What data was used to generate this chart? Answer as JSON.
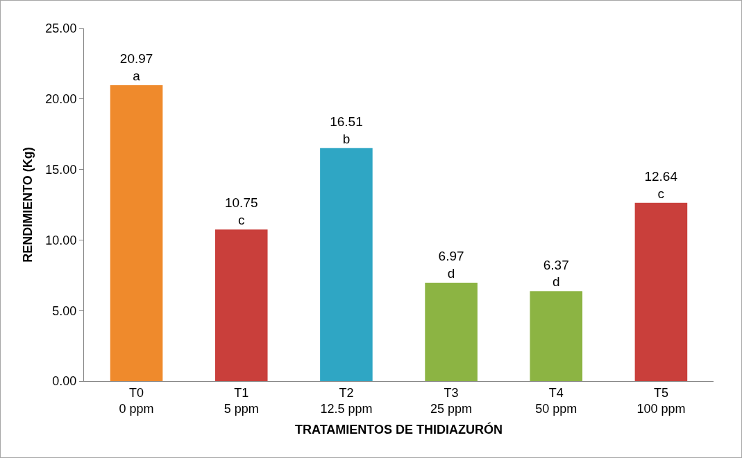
{
  "chart_data": {
    "type": "bar",
    "xlabel": "TRATAMIENTOS DE THIDIAZURÓN",
    "ylabel": "RENDIMIENTO (Kg)",
    "categories": [
      "T0\n0 ppm",
      "T1\n5 ppm",
      "T2\n12.5 ppm",
      "T3\n25 ppm",
      "T4\n50 ppm",
      "T5\n100 ppm"
    ],
    "values": [
      20.97,
      10.75,
      16.51,
      6.97,
      6.37,
      12.64
    ],
    "colors": [
      "#ef8a2c",
      "#c93f3b",
      "#2fa6c4",
      "#8cb443",
      "#8cb443",
      "#c93f3b"
    ],
    "value_labels": [
      "20.97\na",
      "10.75\nc",
      "16.51\nb",
      "6.97\nd",
      "6.37\nd",
      "12.64\nc"
    ],
    "ylim": [
      0,
      25
    ],
    "yticks": [
      {
        "value": 0,
        "label": "0.00"
      },
      {
        "value": 5,
        "label": "5.00"
      },
      {
        "value": 10,
        "label": "10.00"
      },
      {
        "value": 15,
        "label": "15.00"
      },
      {
        "value": 20,
        "label": "20.00"
      },
      {
        "value": 25,
        "label": "25.00"
      }
    ],
    "grid": false,
    "legend": false
  }
}
